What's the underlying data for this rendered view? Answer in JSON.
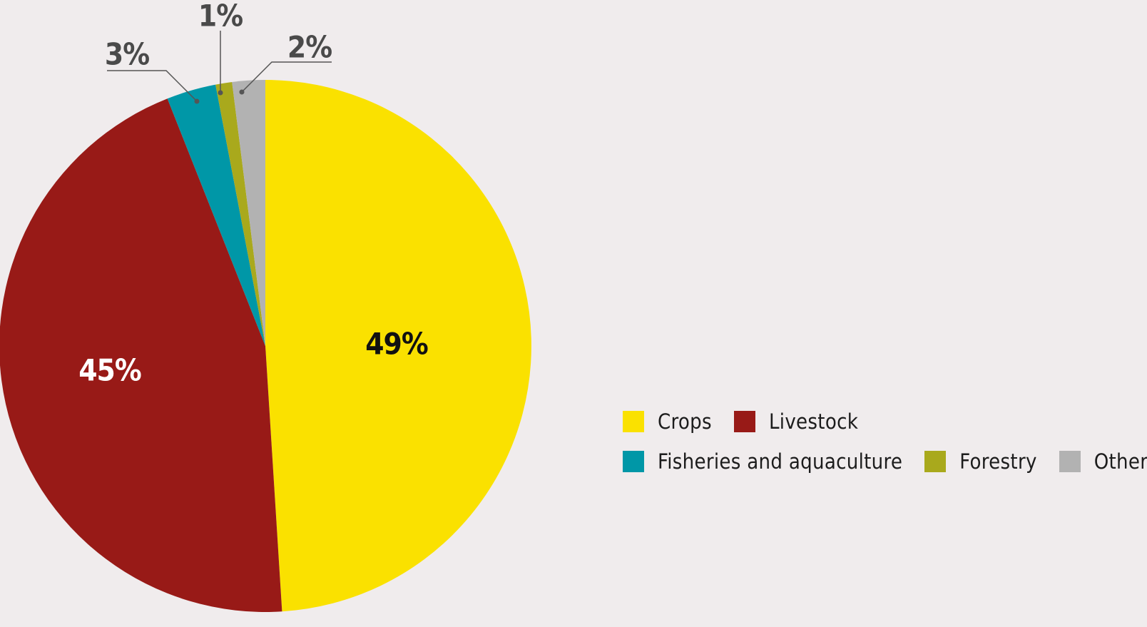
{
  "chart_data": {
    "type": "pie",
    "title": "",
    "slices": [
      {
        "label": "Crops",
        "value": 49,
        "display": "49%",
        "color": "#fae100",
        "label_color": "#111111"
      },
      {
        "label": "Livestock",
        "value": 45,
        "display": "45%",
        "color": "#981a17",
        "label_color": "#ffffff"
      },
      {
        "label": "Fisheries and aquaculture",
        "value": 3,
        "display": "3%",
        "color": "#0097a7",
        "label_color": "#4a4a4a"
      },
      {
        "label": "Forestry",
        "value": 1,
        "display": "1%",
        "color": "#a9a91c",
        "label_color": "#4a4a4a"
      },
      {
        "label": "Other",
        "value": 2,
        "display": "2%",
        "color": "#b2b2b2",
        "label_color": "#4a4a4a"
      }
    ],
    "legend_position": "right",
    "legend_rows": [
      [
        "Crops",
        "Livestock"
      ],
      [
        "Fisheries and aquaculture",
        "Forestry",
        "Other"
      ]
    ]
  },
  "colors": {
    "background": "#f0eced",
    "leader_line": "#555555"
  }
}
